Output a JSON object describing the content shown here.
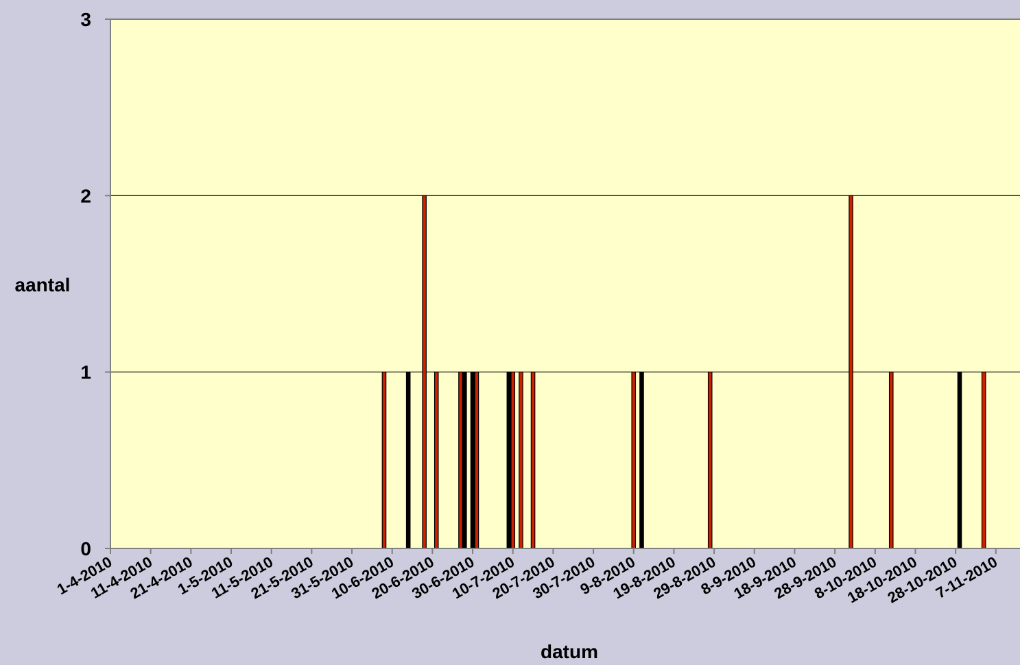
{
  "chart_data": {
    "type": "bar",
    "title": "",
    "xlabel": "datum",
    "ylabel": "aantal",
    "ylim": [
      0,
      3
    ],
    "yticks": [
      0,
      1,
      2,
      3
    ],
    "xlim": [
      "2010-04-01",
      "2010-11-14"
    ],
    "x_tick_labels": [
      "1-4-2010",
      "11-4-2010",
      "21-4-2010",
      "1-5-2010",
      "11-5-2010",
      "21-5-2010",
      "31-5-2010",
      "10-6-2010",
      "20-6-2010",
      "30-6-2010",
      "10-7-2010",
      "20-7-2010",
      "30-7-2010",
      "9-8-2010",
      "19-8-2010",
      "29-8-2010",
      "8-9-2010",
      "18-9-2010",
      "28-9-2010",
      "8-10-2010",
      "18-10-2010",
      "28-10-2010",
      "7-11-2010"
    ],
    "x_tick_dates": [
      "2010-04-01",
      "2010-04-11",
      "2010-04-21",
      "2010-05-01",
      "2010-05-11",
      "2010-05-21",
      "2010-05-31",
      "2010-06-10",
      "2010-06-20",
      "2010-06-30",
      "2010-07-10",
      "2010-07-20",
      "2010-07-30",
      "2010-08-09",
      "2010-08-19",
      "2010-08-29",
      "2010-09-08",
      "2010-09-18",
      "2010-09-28",
      "2010-10-08",
      "2010-10-18",
      "2010-10-28",
      "2010-11-07"
    ],
    "grid": "horizontal",
    "legend": "none",
    "colors": {
      "plot_background": "#ffffcc",
      "page_background": "#ccccde",
      "bar_red": "#cc2200",
      "bar_black": "#000000",
      "gridline": "#000000"
    },
    "bars": [
      {
        "date": "2010-06-08",
        "value": 1,
        "color": "red"
      },
      {
        "date": "2010-06-14",
        "value": 1,
        "color": "black"
      },
      {
        "date": "2010-06-18",
        "value": 2,
        "color": "red"
      },
      {
        "date": "2010-06-21",
        "value": 1,
        "color": "red"
      },
      {
        "date": "2010-06-27",
        "value": 1,
        "color": "red"
      },
      {
        "date": "2010-06-28",
        "value": 1,
        "color": "black"
      },
      {
        "date": "2010-06-30",
        "value": 1,
        "color": "black"
      },
      {
        "date": "2010-07-01",
        "value": 1,
        "color": "red"
      },
      {
        "date": "2010-07-09",
        "value": 1,
        "color": "black"
      },
      {
        "date": "2010-07-10",
        "value": 1,
        "color": "red"
      },
      {
        "date": "2010-07-12",
        "value": 1,
        "color": "red"
      },
      {
        "date": "2010-07-15",
        "value": 1,
        "color": "red"
      },
      {
        "date": "2010-08-09",
        "value": 1,
        "color": "red"
      },
      {
        "date": "2010-08-11",
        "value": 1,
        "color": "black"
      },
      {
        "date": "2010-08-28",
        "value": 1,
        "color": "red"
      },
      {
        "date": "2010-10-02",
        "value": 2,
        "color": "red"
      },
      {
        "date": "2010-10-12",
        "value": 1,
        "color": "red"
      },
      {
        "date": "2010-10-29",
        "value": 1,
        "color": "black"
      },
      {
        "date": "2010-11-04",
        "value": 1,
        "color": "red"
      }
    ]
  }
}
